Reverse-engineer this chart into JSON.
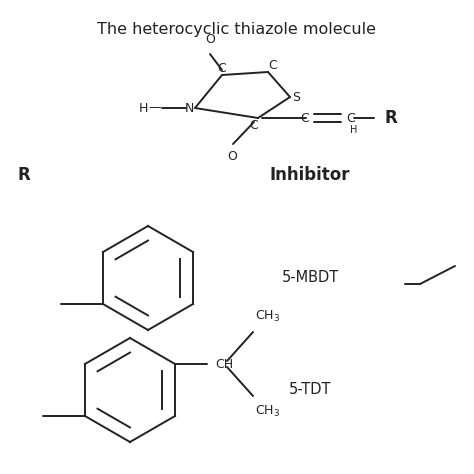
{
  "title": "The heterocyclic thiazole molecule",
  "title_fontsize": 11.5,
  "background_color": "#ffffff",
  "text_color": "#222222",
  "label_R": "R",
  "label_Inhibitor": "Inhibitor",
  "label_5MBDT": "5-MBDT",
  "label_5TDT": "5-TDT"
}
